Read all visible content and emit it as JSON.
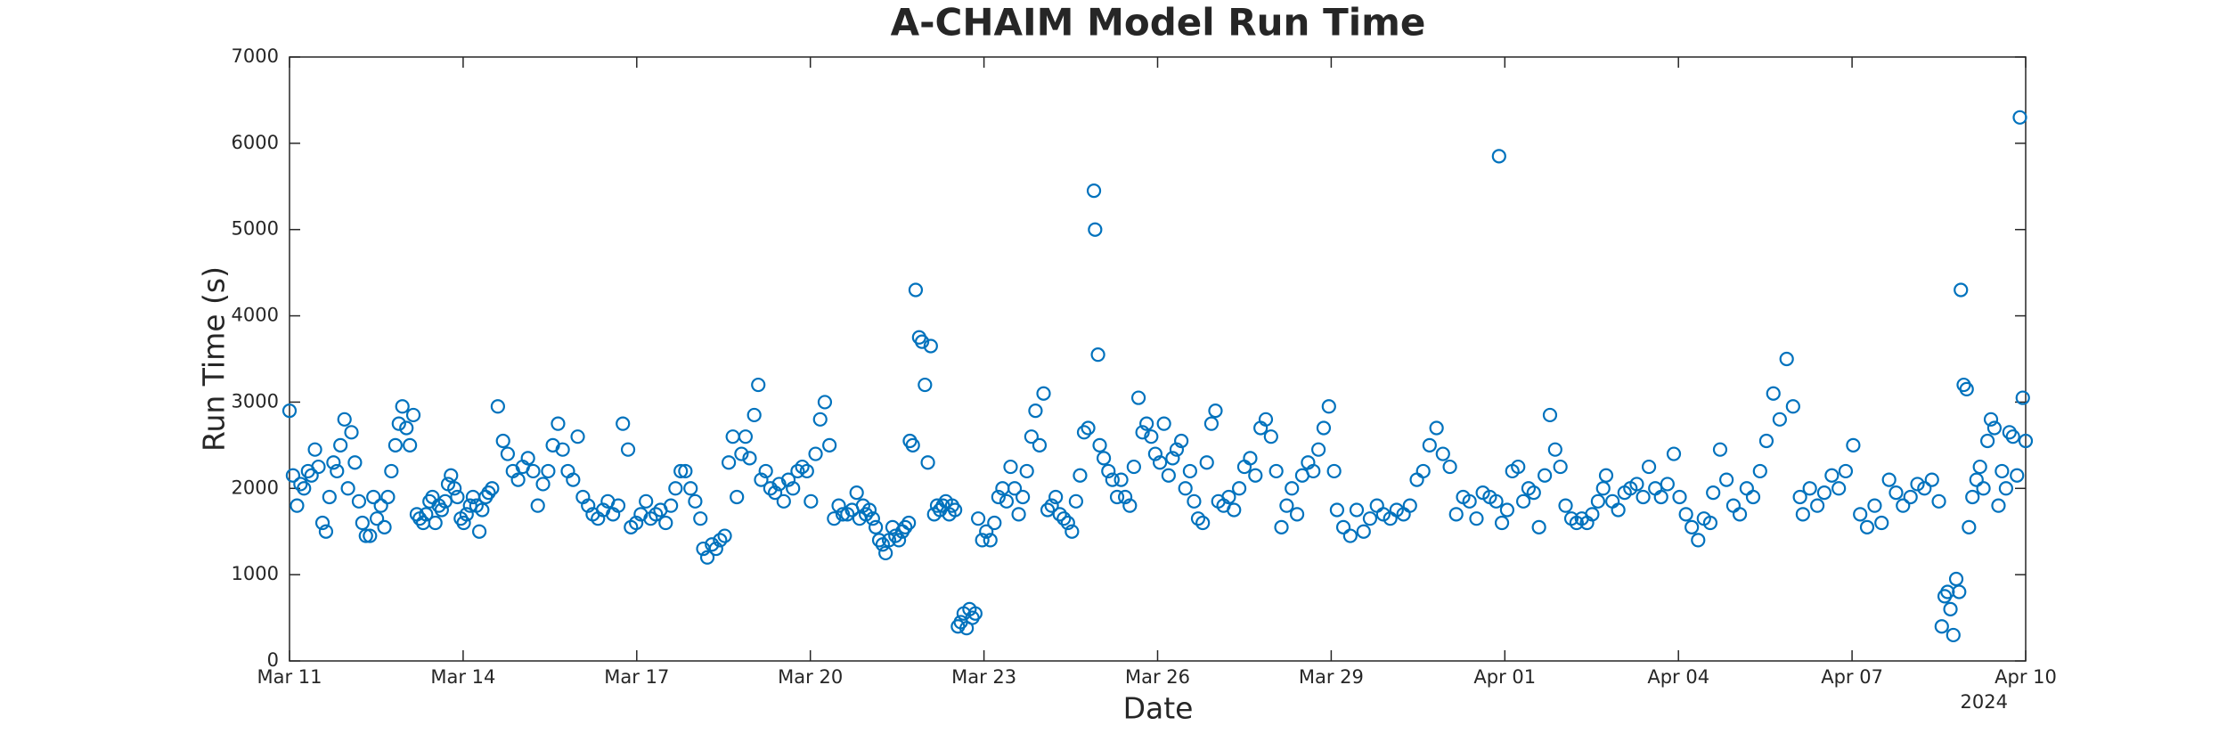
{
  "chart_data": {
    "type": "scatter",
    "title": "A-CHAIM Model Run Time",
    "x_label": "Date",
    "y_label": "Run Time (s)",
    "x_annotation": "2024",
    "color": "#0072BD",
    "marker": "open-circle",
    "grid": false,
    "xlim": [
      0,
      30
    ],
    "xticks": [
      {
        "value": 0,
        "label": "Mar 11"
      },
      {
        "value": 3,
        "label": "Mar 14"
      },
      {
        "value": 6,
        "label": "Mar 17"
      },
      {
        "value": 9,
        "label": "Mar 20"
      },
      {
        "value": 12,
        "label": "Mar 23"
      },
      {
        "value": 15,
        "label": "Mar 26"
      },
      {
        "value": 18,
        "label": "Mar 29"
      },
      {
        "value": 21,
        "label": "Apr 01"
      },
      {
        "value": 24,
        "label": "Apr 04"
      },
      {
        "value": 27,
        "label": "Apr 07"
      },
      {
        "value": 30,
        "label": "Apr 10"
      }
    ],
    "ylim": [
      0,
      7000
    ],
    "yticks": [
      0,
      1000,
      2000,
      3000,
      4000,
      5000,
      6000,
      7000
    ],
    "x": [
      0,
      0.06,
      0.13,
      0.19,
      0.25,
      0.32,
      0.38,
      0.44,
      0.5,
      0.57,
      0.63,
      0.69,
      0.76,
      0.82,
      0.88,
      0.95,
      1.01,
      1.07,
      1.13,
      1.2,
      1.26,
      1.32,
      1.39,
      1.45,
      1.51,
      1.58,
      1.64,
      1.7,
      1.76,
      1.83,
      1.89,
      1.95,
      2.02,
      2.08,
      2.14,
      2.2,
      2.25,
      2.31,
      2.36,
      2.42,
      2.47,
      2.52,
      2.58,
      2.63,
      2.69,
      2.74,
      2.79,
      2.85,
      2.9,
      2.96,
      3.01,
      3.06,
      3.12,
      3.17,
      3.23,
      3.28,
      3.33,
      3.39,
      3.44,
      3.5,
      3.6,
      3.69,
      3.77,
      3.86,
      3.95,
      4.03,
      4.12,
      4.21,
      4.29,
      4.38,
      4.47,
      4.55,
      4.64,
      4.72,
      4.81,
      4.9,
      4.98,
      5.07,
      5.16,
      5.24,
      5.33,
      5.42,
      5.5,
      5.59,
      5.68,
      5.76,
      5.85,
      5.9,
      5.99,
      6.07,
      6.16,
      6.24,
      6.33,
      6.41,
      6.5,
      6.59,
      6.67,
      6.76,
      6.84,
      6.93,
      7.01,
      7.1,
      7.15,
      7.22,
      7.3,
      7.37,
      7.44,
      7.52,
      7.59,
      7.66,
      7.73,
      7.81,
      7.88,
      7.95,
      8.03,
      8.1,
      8.15,
      8.23,
      8.31,
      8.39,
      8.46,
      8.54,
      8.62,
      8.7,
      8.78,
      8.86,
      8.94,
      9.01,
      9.09,
      9.17,
      9.25,
      9.33,
      9.41,
      9.49,
      9.56,
      9.64,
      9.72,
      9.8,
      9.85,
      9.91,
      9.96,
      10.02,
      10.08,
      10.13,
      10.19,
      10.25,
      10.3,
      10.36,
      10.42,
      10.47,
      10.53,
      10.59,
      10.64,
      10.7,
      10.72,
      10.77,
      10.82,
      10.88,
      10.93,
      10.98,
      11.03,
      11.08,
      11.14,
      11.19,
      11.24,
      11.29,
      11.34,
      11.4,
      11.45,
      11.5,
      11.55,
      11.6,
      11.65,
      11.7,
      11.75,
      11.8,
      11.85,
      11.9,
      11.97,
      12.04,
      12.11,
      12.18,
      12.25,
      12.32,
      12.39,
      12.46,
      12.53,
      12.6,
      12.67,
      12.74,
      12.82,
      12.89,
      12.96,
      13.03,
      13.1,
      13.17,
      13.24,
      13.31,
      13.38,
      13.45,
      13.52,
      13.59,
      13.66,
      13.73,
      13.8,
      13.9,
      13.92,
      13.97,
      14.0,
      14.07,
      14.15,
      14.22,
      14.3,
      14.37,
      14.44,
      14.52,
      14.59,
      14.67,
      14.74,
      14.81,
      14.89,
      14.96,
      15.04,
      15.11,
      15.19,
      15.26,
      15.33,
      15.41,
      15.48,
      15.56,
      15.63,
      15.7,
      15.78,
      15.85,
      15.93,
      16.0,
      16.05,
      16.14,
      16.23,
      16.32,
      16.41,
      16.5,
      16.6,
      16.69,
      16.78,
      16.87,
      16.96,
      17.05,
      17.14,
      17.23,
      17.32,
      17.41,
      17.5,
      17.6,
      17.69,
      17.78,
      17.87,
      17.96,
      18.05,
      18.1,
      18.21,
      18.33,
      18.44,
      18.56,
      18.67,
      18.79,
      18.9,
      19.02,
      19.13,
      19.25,
      19.36,
      19.48,
      19.59,
      19.7,
      19.82,
      19.93,
      20.05,
      20.16,
      20.28,
      20.39,
      20.51,
      20.62,
      20.74,
      20.85,
      20.9,
      20.95,
      21.04,
      21.13,
      21.23,
      21.32,
      21.41,
      21.5,
      21.59,
      21.69,
      21.78,
      21.87,
      21.96,
      22.05,
      22.15,
      22.24,
      22.33,
      22.42,
      22.51,
      22.61,
      22.7,
      22.75,
      22.86,
      22.96,
      23.07,
      23.17,
      23.28,
      23.39,
      23.49,
      23.6,
      23.7,
      23.81,
      23.92,
      24.02,
      24.13,
      24.23,
      24.34,
      24.44,
      24.55,
      24.6,
      24.72,
      24.83,
      24.95,
      25.06,
      25.18,
      25.29,
      25.41,
      25.52,
      25.64,
      25.75,
      25.87,
      25.98,
      26.1,
      26.15,
      26.27,
      26.4,
      26.52,
      26.65,
      26.77,
      26.89,
      27.02,
      27.14,
      27.26,
      27.39,
      27.51,
      27.64,
      27.76,
      27.88,
      28.01,
      28.13,
      28.25,
      28.38,
      28.5,
      28.55,
      28.6,
      28.65,
      28.7,
      28.75,
      28.8,
      28.85,
      28.88,
      28.93,
      28.98,
      29.02,
      29.08,
      29.15,
      29.21,
      29.27,
      29.34,
      29.4,
      29.46,
      29.53,
      29.59,
      29.66,
      29.72,
      29.78,
      29.85,
      29.9,
      29.95,
      30.0
    ],
    "values": [
      2900,
      2150,
      1800,
      2050,
      2000,
      2200,
      2150,
      2450,
      2250,
      1600,
      1500,
      1900,
      2300,
      2200,
      2500,
      2800,
      2000,
      2650,
      2300,
      1850,
      1600,
      1450,
      1450,
      1900,
      1650,
      1800,
      1550,
      1900,
      2200,
      2500,
      2750,
      2950,
      2700,
      2500,
      2850,
      1700,
      1650,
      1600,
      1700,
      1850,
      1900,
      1600,
      1800,
      1750,
      1850,
      2050,
      2150,
      2000,
      1900,
      1650,
      1600,
      1700,
      1800,
      1900,
      1800,
      1500,
      1750,
      1900,
      1950,
      2000,
      2950,
      2550,
      2400,
      2200,
      2100,
      2250,
      2350,
      2200,
      1800,
      2050,
      2200,
      2500,
      2750,
      2450,
      2200,
      2100,
      2600,
      1900,
      1800,
      1700,
      1650,
      1750,
      1850,
      1700,
      1800,
      2750,
      2450,
      1550,
      1600,
      1700,
      1850,
      1650,
      1700,
      1750,
      1600,
      1800,
      2000,
      2200,
      2200,
      2000,
      1850,
      1650,
      1300,
      1200,
      1350,
      1300,
      1400,
      1450,
      2300,
      2600,
      1900,
      2400,
      2600,
      2350,
      2850,
      3200,
      2100,
      2200,
      2000,
      1950,
      2050,
      1850,
      2100,
      2000,
      2200,
      2250,
      2200,
      1850,
      2400,
      2800,
      3000,
      2500,
      1650,
      1800,
      1700,
      1700,
      1750,
      1950,
      1650,
      1800,
      1700,
      1750,
      1650,
      1550,
      1400,
      1350,
      1250,
      1400,
      1550,
      1450,
      1400,
      1500,
      1550,
      1600,
      2550,
      2500,
      4300,
      3750,
      3700,
      3200,
      2300,
      3650,
      1700,
      1800,
      1750,
      1800,
      1850,
      1700,
      1800,
      1750,
      400,
      450,
      550,
      380,
      600,
      500,
      550,
      1650,
      1400,
      1500,
      1400,
      1600,
      1900,
      2000,
      1850,
      2250,
      2000,
      1700,
      1900,
      2200,
      2600,
      2900,
      2500,
      3100,
      1750,
      1800,
      1900,
      1700,
      1650,
      1600,
      1500,
      1850,
      2150,
      2650,
      2700,
      5450,
      5000,
      3550,
      2500,
      2350,
      2200,
      2100,
      1900,
      2100,
      1900,
      1800,
      2250,
      3050,
      2650,
      2750,
      2600,
      2400,
      2300,
      2750,
      2150,
      2350,
      2450,
      2550,
      2000,
      2200,
      1850,
      1650,
      1600,
      2300,
      2750,
      2900,
      1850,
      1800,
      1900,
      1750,
      2000,
      2250,
      2350,
      2150,
      2700,
      2800,
      2600,
      2200,
      1550,
      1800,
      2000,
      1700,
      2150,
      2300,
      2200,
      2450,
      2700,
      2950,
      2200,
      1750,
      1550,
      1450,
      1750,
      1500,
      1650,
      1800,
      1700,
      1650,
      1750,
      1700,
      1800,
      2100,
      2200,
      2500,
      2700,
      2400,
      2250,
      1700,
      1900,
      1850,
      1650,
      1950,
      1900,
      1850,
      5850,
      1600,
      1750,
      2200,
      2250,
      1850,
      2000,
      1950,
      1550,
      2150,
      2850,
      2450,
      2250,
      1800,
      1650,
      1600,
      1650,
      1600,
      1700,
      1850,
      2000,
      2150,
      1850,
      1750,
      1950,
      2000,
      2050,
      1900,
      2250,
      2000,
      1900,
      2050,
      2400,
      1900,
      1700,
      1550,
      1400,
      1650,
      1600,
      1950,
      2450,
      2100,
      1800,
      1700,
      2000,
      1900,
      2200,
      2550,
      3100,
      2800,
      3500,
      2950,
      1900,
      1700,
      2000,
      1800,
      1950,
      2150,
      2000,
      2200,
      2500,
      1700,
      1550,
      1800,
      1600,
      2100,
      1950,
      1800,
      1900,
      2050,
      2000,
      2100,
      1850,
      400,
      750,
      800,
      600,
      300,
      950,
      800,
      4300,
      3200,
      3150,
      1550,
      1900,
      2100,
      2250,
      2000,
      2550,
      2800,
      2700,
      1800,
      2200,
      2000,
      2650,
      2600,
      2150,
      6300,
      3050,
      2550
    ]
  }
}
